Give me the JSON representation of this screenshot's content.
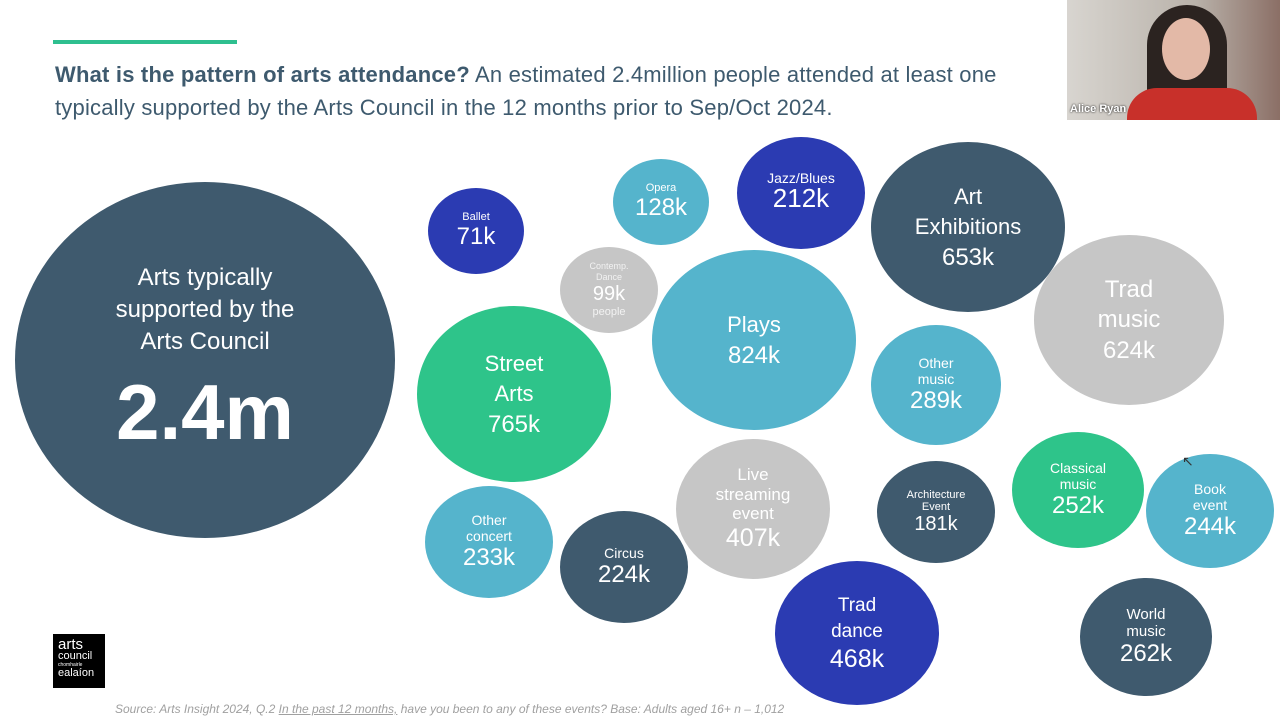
{
  "headline": {
    "bold": "What is the pattern of arts attendance?",
    "rest": " An estimated 2.4million people attended at least one typically supported by the Arts Council in the 12 months prior to Sep/Oct 2024."
  },
  "colors": {
    "dark": "#3f5a6e",
    "teal": "#55b4cc",
    "green": "#2ec48a",
    "blue": "#2b3bb2",
    "gray": "#c6c6c6",
    "accent": "#2ebf8f"
  },
  "total": {
    "label": "Arts typically supported by the Arts Council",
    "value": "2.4m"
  },
  "bubbles": [
    {
      "label": "Ballet",
      "value": "71k"
    },
    {
      "label": "Opera",
      "value": "128k"
    },
    {
      "label": "Jazz/Blues",
      "value": "212k"
    },
    {
      "label": "Art Exhibitions",
      "value": "653k"
    },
    {
      "label": "Contemp. Dance",
      "value": "99k",
      "sub": "people"
    },
    {
      "label": "Plays",
      "value": "824k"
    },
    {
      "label": "Trad music",
      "value": "624k"
    },
    {
      "label": "Street Arts",
      "value": "765k"
    },
    {
      "label": "Other music",
      "value": "289k"
    },
    {
      "label": "Other concert",
      "value": "233k"
    },
    {
      "label": "Circus",
      "value": "224k"
    },
    {
      "label": "Live streaming event",
      "value": "407k"
    },
    {
      "label": "Architecture Event",
      "value": "181k"
    },
    {
      "label": "Classical music",
      "value": "252k"
    },
    {
      "label": "Book event",
      "value": "244k"
    },
    {
      "label": "Trad dance",
      "value": "468k"
    },
    {
      "label": "World music",
      "value": "262k"
    }
  ],
  "logo": {
    "line1": "arts",
    "line2": "council",
    "line3": "chomhairle",
    "line4": "ealaíon"
  },
  "source": {
    "pre": "Source: Arts Insight 2024, Q.2 ",
    "underlined": "In the past 12 months,",
    "post": " have you been to any of these events? Base: Adults aged 16+ n – 1,012"
  },
  "video": {
    "participant_name": "Alice Ryan"
  }
}
